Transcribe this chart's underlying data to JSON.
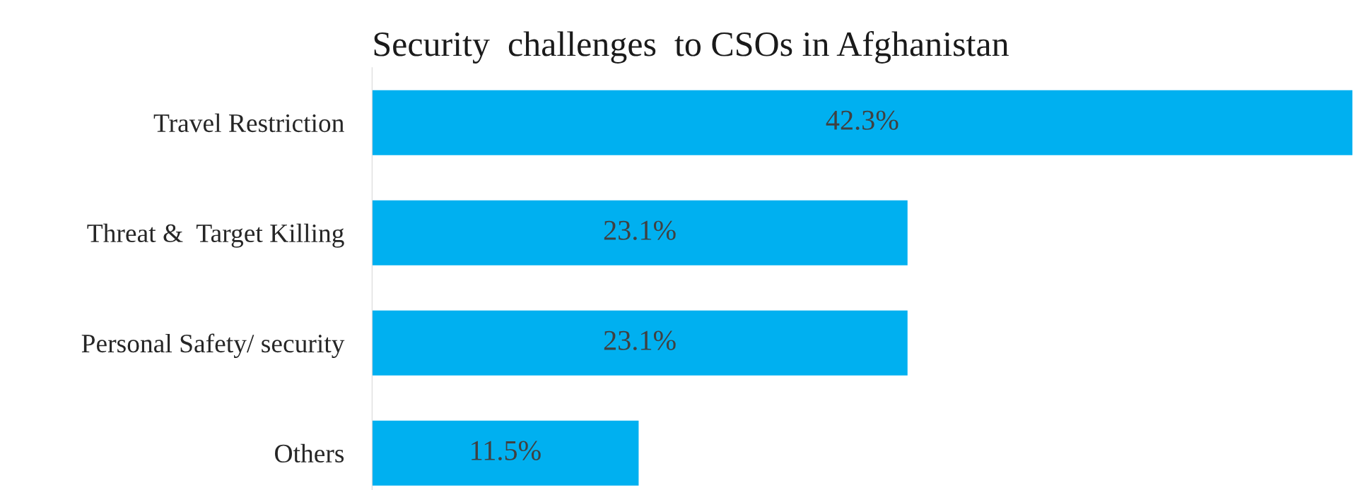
{
  "chart_data": {
    "type": "bar",
    "orientation": "horizontal",
    "title": "Security  challenges  to CSOs in Afghanistan",
    "categories": [
      "Travel Restriction",
      "Threat &  Target Killing",
      "Personal Safety/ security",
      "Others"
    ],
    "values": [
      42.3,
      23.1,
      23.1,
      11.5
    ],
    "color": "#00b0f0",
    "value_labels": [
      "42.3%",
      "23.1%",
      "23.1%",
      "11.5%"
    ],
    "grid": false,
    "legend": false
  }
}
